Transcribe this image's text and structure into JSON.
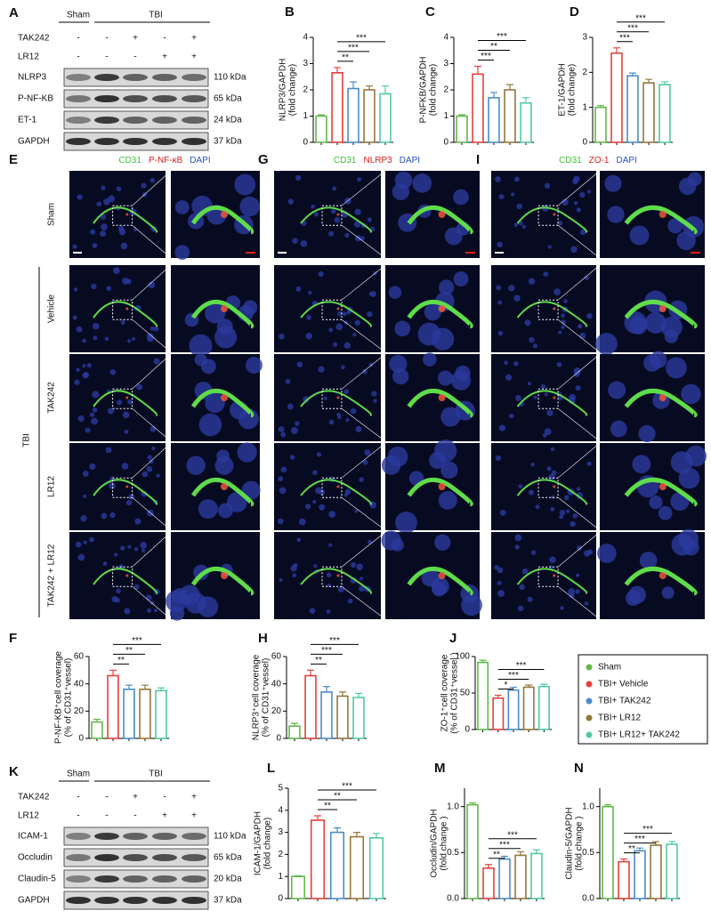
{
  "legend": {
    "entries": [
      {
        "name": "Sham",
        "color": "#63b84a"
      },
      {
        "name": "TBI+ Vehicle",
        "color": "#e5403c"
      },
      {
        "name": "TBI+ TAK242",
        "color": "#4a8ccc"
      },
      {
        "name": "TBI+ LR12",
        "color": "#94773c"
      },
      {
        "name": "TBI+ LR12+ TAK242",
        "color": "#52c9a6"
      }
    ]
  },
  "blots": [
    {
      "letter": "A",
      "header": [
        "Sham",
        "TBI"
      ],
      "treatments": [
        {
          "name": "TAK242",
          "marks": [
            "-",
            "-",
            "+",
            "-",
            "+"
          ]
        },
        {
          "name": "LR12",
          "marks": [
            "-",
            "-",
            "-",
            "+",
            "+"
          ]
        }
      ],
      "bands": [
        {
          "name": "NLRP3",
          "size": "110 kDa"
        },
        {
          "name": "P-NF-KB",
          "size": "65 kDa"
        },
        {
          "name": "ET-1",
          "size": "24 kDa"
        },
        {
          "name": "GAPDH",
          "size": "37 kDa"
        }
      ]
    },
    {
      "letter": "K",
      "header": [
        "Sham",
        "TBI"
      ],
      "treatments": [
        {
          "name": "TAK242",
          "marks": [
            "-",
            "-",
            "+",
            "-",
            "+"
          ]
        },
        {
          "name": "LR12",
          "marks": [
            "-",
            "-",
            "-",
            "+",
            "+"
          ]
        }
      ],
      "bands": [
        {
          "name": "ICAM-1",
          "size": "110 kDa"
        },
        {
          "name": "Occludin",
          "size": "65 kDa"
        },
        {
          "name": "Claudin-5",
          "size": "20 kDa"
        },
        {
          "name": "GAPDH",
          "size": "37 kDa"
        }
      ]
    }
  ],
  "micrographs": {
    "row_group": "TBI",
    "row_labels": [
      "Sham",
      "Vehicle",
      "TAK242",
      "LR12",
      "TAK242 + LR12"
    ],
    "panels": [
      {
        "letter": "E",
        "stains": [
          {
            "text": "CD31",
            "color": "#3fbf3f"
          },
          {
            "text": "P-NF-κB",
            "color": "#e02020"
          },
          {
            "text": "DAPI",
            "color": "#2a4fd0"
          }
        ]
      },
      {
        "letter": "G",
        "stains": [
          {
            "text": "CD31",
            "color": "#3fbf3f"
          },
          {
            "text": "NLRP3",
            "color": "#e02020"
          },
          {
            "text": "DAPI",
            "color": "#2a4fd0"
          }
        ]
      },
      {
        "letter": "I",
        "stains": [
          {
            "text": "CD31",
            "color": "#3fbf3f"
          },
          {
            "text": "ZO-1",
            "color": "#e02020"
          },
          {
            "text": "DAPI",
            "color": "#2a4fd0"
          }
        ]
      }
    ]
  },
  "chart_data": [
    {
      "type": "bar",
      "letter": "B",
      "ylabel": [
        "NLRP3/GAPDH",
        "(fold change)"
      ],
      "ylim": [
        0,
        4
      ],
      "yticks": [
        0,
        1,
        2,
        3,
        4
      ],
      "values": [
        1.0,
        2.65,
        2.05,
        2.0,
        1.85
      ],
      "errors": [
        0.05,
        0.2,
        0.25,
        0.15,
        0.3
      ],
      "significance": [
        null,
        null,
        "**",
        "***",
        "***"
      ]
    },
    {
      "type": "bar",
      "letter": "C",
      "ylabel": [
        "P-NFKB/GAPDH",
        "(fold change)"
      ],
      "ylim": [
        0,
        4
      ],
      "yticks": [
        0,
        1,
        2,
        3,
        4
      ],
      "values": [
        1.0,
        2.6,
        1.7,
        2.0,
        1.5
      ],
      "errors": [
        0.05,
        0.3,
        0.2,
        0.2,
        0.2
      ],
      "significance": [
        null,
        null,
        "***",
        "**",
        "***"
      ]
    },
    {
      "type": "bar",
      "letter": "D",
      "ylabel": [
        "ET-1/GAPDH",
        "(fold change)"
      ],
      "ylim": [
        0,
        3
      ],
      "yticks": [
        0,
        1,
        2,
        3
      ],
      "values": [
        1.0,
        2.55,
        1.9,
        1.7,
        1.65
      ],
      "errors": [
        0.05,
        0.15,
        0.08,
        0.1,
        0.08
      ],
      "significance": [
        null,
        null,
        "***",
        "***",
        "***"
      ]
    },
    {
      "type": "bar",
      "letter": "F",
      "ylabel": [
        "P-NF-KB⁺cell coverage",
        "(% of CD31⁺vessel)"
      ],
      "ylim": [
        0,
        60
      ],
      "yticks": [
        0,
        20,
        40,
        60
      ],
      "values": [
        12,
        46,
        36,
        36,
        35
      ],
      "errors": [
        2,
        4,
        3,
        3,
        2
      ],
      "significance": [
        null,
        null,
        "**",
        "**",
        "***"
      ]
    },
    {
      "type": "bar",
      "letter": "H",
      "ylabel": [
        "NLRP3⁺cell coverage",
        "(% of CD31⁺vessel)"
      ],
      "ylim": [
        0,
        60
      ],
      "yticks": [
        0,
        20,
        40,
        60
      ],
      "values": [
        9,
        46,
        34,
        31,
        30
      ],
      "errors": [
        2,
        4,
        4,
        3,
        3
      ],
      "significance": [
        null,
        null,
        "**",
        "***",
        "***"
      ]
    },
    {
      "type": "bar",
      "letter": "J",
      "ylabel": [
        "ZO-1⁺cell coverage",
        "(% of CD31⁺vessel )"
      ],
      "ylim": [
        0,
        100
      ],
      "yticks": [
        0,
        50,
        100
      ],
      "values": [
        92,
        43,
        54,
        58,
        59
      ],
      "errors": [
        3,
        4,
        4,
        3,
        3
      ],
      "significance": [
        null,
        null,
        "*",
        "***",
        "***"
      ]
    },
    {
      "type": "bar",
      "letter": "L",
      "ylabel": [
        "ICAM-1/GAPDH",
        "(fold change)"
      ],
      "ylim": [
        0,
        5
      ],
      "yticks": [
        0,
        1,
        2,
        3,
        4,
        5
      ],
      "values": [
        1.0,
        3.55,
        3.0,
        2.8,
        2.75
      ],
      "errors": [
        0.03,
        0.2,
        0.2,
        0.2,
        0.2
      ],
      "significance": [
        null,
        null,
        "**",
        "**",
        "***"
      ]
    },
    {
      "type": "bar",
      "letter": "M",
      "ylabel": [
        "Occludin/GAPDH",
        "(fold change )"
      ],
      "ylim": [
        0,
        1.2
      ],
      "yticks": [
        {
          "value": 0,
          "label": "0.0"
        },
        0.5,
        {
          "value": 1,
          "label": "1.0"
        }
      ],
      "values": [
        1.02,
        0.33,
        0.43,
        0.47,
        0.49
      ],
      "errors": [
        0.02,
        0.04,
        0.03,
        0.04,
        0.04
      ],
      "significance": [
        null,
        null,
        "**",
        "***",
        "***"
      ]
    },
    {
      "type": "bar",
      "letter": "N",
      "ylabel": [
        "Claudin-5/GAPDH",
        "(fold change )"
      ],
      "ylim": [
        0,
        1.2
      ],
      "yticks": [
        {
          "value": 0,
          "label": "0.0"
        },
        0.5,
        {
          "value": 1,
          "label": "1.0"
        }
      ],
      "values": [
        1.0,
        0.4,
        0.52,
        0.58,
        0.59
      ],
      "errors": [
        0.02,
        0.03,
        0.03,
        0.04,
        0.03
      ],
      "significance": [
        null,
        null,
        "**",
        "***",
        "***"
      ]
    }
  ]
}
